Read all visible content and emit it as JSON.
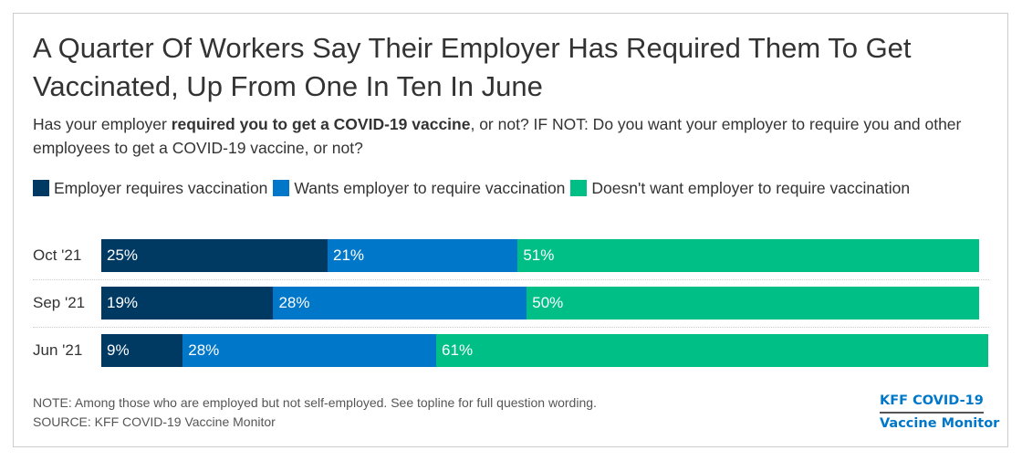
{
  "title": "A Quarter Of Workers Say Their Employer Has Required Them To Get Vaccinated, Up From One In Ten In June",
  "subtitle": {
    "before": "Has your employer ",
    "bold": "required you to get a COVID-19 vaccine",
    "after": ", or not? IF NOT: Do you want your employer to require you and other employees to get a COVID-19 vaccine, or not?"
  },
  "chart_data": {
    "type": "bar",
    "orientation": "horizontal",
    "stacked": true,
    "categories": [
      "Oct '21",
      "Sep '21",
      "Jun '21"
    ],
    "series": [
      {
        "name": "Employer requires vaccination",
        "color": "#003a63",
        "values": [
          25,
          19,
          9
        ]
      },
      {
        "name": "Wants employer to require vaccination",
        "color": "#0077c8",
        "values": [
          21,
          28,
          28
        ]
      },
      {
        "name": "Doesn't want employer to require vaccination",
        "color": "#00bf86",
        "values": [
          51,
          50,
          61
        ]
      }
    ],
    "value_suffix": "%",
    "legend_position": "top",
    "grid": false
  },
  "footer": {
    "note": "NOTE: Among those who are employed but not self-employed. See topline for full question wording.",
    "source": "SOURCE: KFF COVID-19 Vaccine Monitor"
  },
  "logo": {
    "line1": "KFF COVID-19",
    "line2": "Vaccine Monitor"
  }
}
